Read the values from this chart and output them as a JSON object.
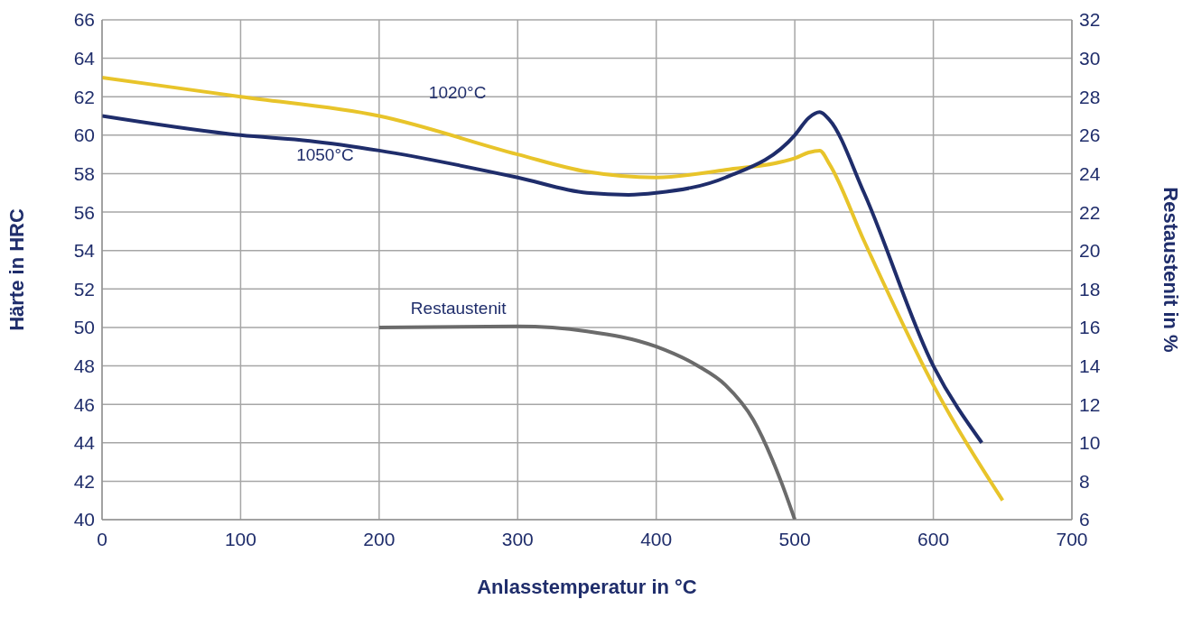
{
  "chart_data": {
    "type": "line",
    "xlabel": "Anlasstemperatur in °C",
    "ylabel": "Härte in HRC",
    "y2label": "Restaustenit in %",
    "xlim": [
      0,
      700
    ],
    "xticks": [
      0,
      100,
      200,
      300,
      400,
      500,
      600,
      700
    ],
    "ylim": [
      40,
      66
    ],
    "yticks": [
      40,
      42,
      44,
      46,
      48,
      50,
      52,
      54,
      56,
      58,
      60,
      62,
      64,
      66
    ],
    "y2lim": [
      6,
      32
    ],
    "y2ticks": [
      6,
      8,
      10,
      12,
      14,
      16,
      18,
      20,
      22,
      24,
      26,
      28,
      30,
      32
    ],
    "grid": true,
    "marker": "none",
    "line_style": "solid",
    "series": [
      {
        "name": "1020°C",
        "color": "#e8c42a",
        "x": [
          0,
          100,
          200,
          300,
          350,
          400,
          450,
          500,
          510,
          518,
          525,
          550,
          600,
          650
        ],
        "values": [
          63,
          62,
          61,
          59,
          58.1,
          57.8,
          58.2,
          58.8,
          59.1,
          59.2,
          58.5,
          54.5,
          47,
          41
        ]
      },
      {
        "name": "1050°C",
        "color": "#1f2d6b",
        "x": [
          0,
          100,
          150,
          200,
          300,
          350,
          380,
          400,
          450,
          500,
          510,
          518,
          525,
          550,
          600,
          635
        ],
        "values": [
          61,
          60,
          59.7,
          59.2,
          57.8,
          57,
          56.9,
          57,
          57.8,
          60,
          60.9,
          61.2,
          60.8,
          57,
          48,
          44
        ]
      },
      {
        "name": "Restaustenit",
        "color": "#6b6b6b",
        "axis": "y2",
        "x": [
          200,
          300,
          350,
          400,
          430,
          450,
          470,
          490,
          500
        ],
        "values": [
          16,
          16.05,
          15.8,
          15,
          14,
          13,
          11.2,
          8,
          6
        ]
      }
    ]
  }
}
